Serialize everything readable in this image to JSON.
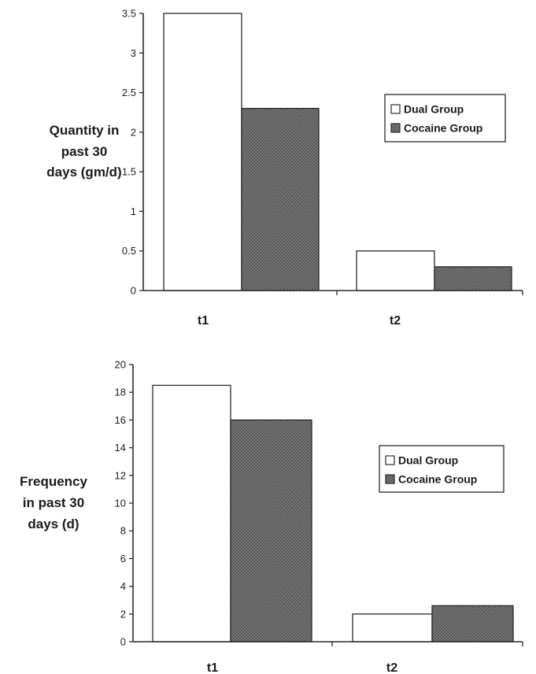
{
  "colors": {
    "axis": "#2a2a2a",
    "dual_fill": "#ffffff",
    "cocaine_fill": "#595959",
    "cocaine_dot": "#9a9a9a"
  },
  "chart_data": [
    {
      "type": "bar",
      "categories": [
        "t1",
        "t2"
      ],
      "series": [
        {
          "name": "Dual Group",
          "values": [
            3.5,
            0.5
          ]
        },
        {
          "name": "Cocaine Group",
          "values": [
            2.3,
            0.3
          ]
        }
      ],
      "ylabel": [
        "Quantity in",
        "past 30",
        "days (gm/d)"
      ],
      "ylim": [
        0,
        3.5
      ],
      "yticks": [
        "0",
        "0.5",
        "1",
        "1.5",
        "2",
        "2.5",
        "3",
        "3.5"
      ],
      "grid": false,
      "legend": "right"
    },
    {
      "type": "bar",
      "categories": [
        "t1",
        "t2"
      ],
      "series": [
        {
          "name": "Dual Group",
          "values": [
            18.5,
            2.0
          ]
        },
        {
          "name": "Cocaine Group",
          "values": [
            16.0,
            2.6
          ]
        }
      ],
      "ylabel": [
        "Frequency",
        "in past 30",
        "days (d)"
      ],
      "ylim": [
        0,
        20
      ],
      "yticks": [
        "0",
        "2",
        "4",
        "6",
        "8",
        "10",
        "12",
        "14",
        "16",
        "18",
        "20"
      ],
      "grid": false,
      "legend": "right"
    }
  ]
}
